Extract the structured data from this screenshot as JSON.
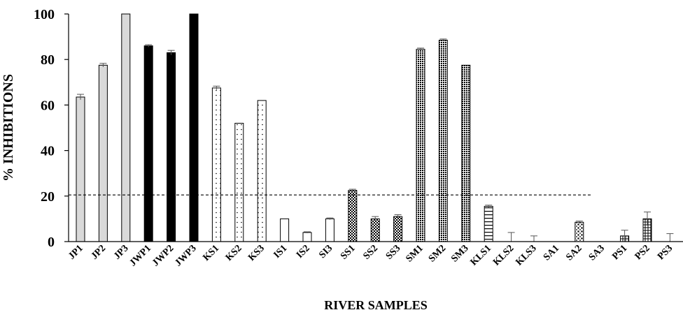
{
  "chart_data": {
    "type": "bar",
    "title": "",
    "xlabel": "RIVER SAMPLES",
    "ylabel": "% INHIBITIONS",
    "ylim": [
      0,
      100
    ],
    "yticks": [
      0,
      20,
      40,
      60,
      80,
      100
    ],
    "threshold": 20.5,
    "grid": false,
    "categories": [
      "JP1",
      "JP2",
      "JP3",
      "JWP1",
      "JWP2",
      "JWP3",
      "KS1",
      "KS2",
      "KS3",
      "IS1",
      "IS2",
      "SI3",
      "SS1",
      "SS2",
      "SS3",
      "SM1",
      "SM2",
      "SM3",
      "KLS1",
      "KLS2",
      "KLS3",
      "SA1",
      "SA2",
      "SA3",
      "PS1",
      "PS2",
      "PS3"
    ],
    "values": [
      63.5,
      77.5,
      100,
      86,
      83,
      100,
      67.5,
      52,
      62,
      10,
      4,
      10,
      22.5,
      10,
      11,
      84.5,
      88.5,
      77.5,
      15.5,
      0,
      0,
      0,
      8.5,
      0,
      2.5,
      10,
      0
    ],
    "errors": [
      1.2,
      0.8,
      0,
      0.5,
      1.0,
      0,
      0.8,
      0,
      0,
      0,
      0.3,
      0.4,
      0.5,
      1.0,
      0.8,
      0.5,
      0.5,
      0,
      0.5,
      4.0,
      2.5,
      0,
      0.5,
      0,
      2.5,
      3.0,
      3.5
    ],
    "bar_fills": [
      "light-gray",
      "light-gray",
      "light-gray",
      "black",
      "black",
      "black",
      "sparse-dots",
      "sparse-dots",
      "sparse-dots",
      "white",
      "white",
      "white",
      "checker",
      "checker",
      "checker",
      "dense-dots",
      "dense-dots",
      "dense-dots",
      "horizontal-lines",
      "horizontal-lines",
      "horizontal-lines",
      "spotted",
      "spotted",
      "spotted",
      "grid",
      "grid",
      "grid"
    ]
  }
}
